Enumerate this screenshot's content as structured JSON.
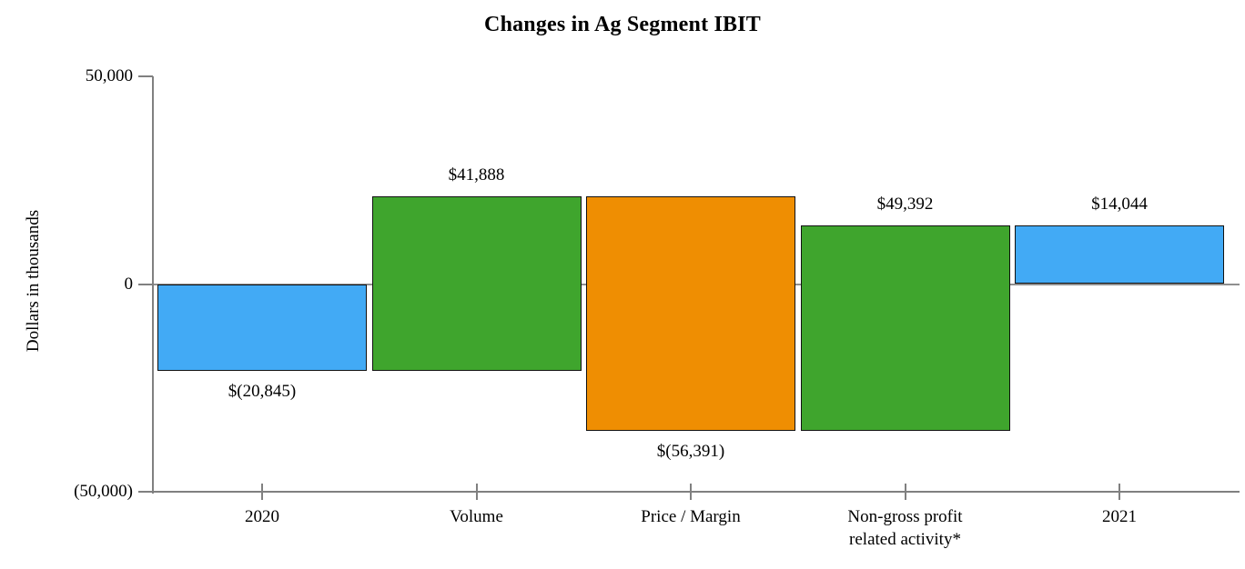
{
  "chart_data": {
    "type": "waterfall",
    "title": "Changes in Ag Segment IBIT",
    "ylabel": "Dollars in thousands",
    "xlabel": "",
    "ylim": [
      -50000,
      50000
    ],
    "grid": "zero-line-only",
    "legend": "none",
    "yticks": [
      {
        "value": 50000,
        "label": "50,000"
      },
      {
        "value": 0,
        "label": "0"
      },
      {
        "value": -50000,
        "label": "(50,000)"
      }
    ],
    "categories": [
      "2020",
      "Volume",
      "Price / Margin",
      "Non-gross profit\nrelated activity*",
      "2021"
    ],
    "values": [
      -20845,
      41888,
      -56391,
      49392,
      14044
    ],
    "bars": [
      {
        "category": "2020",
        "start": 0,
        "end": -20845,
        "value": -20845,
        "label": "$(20,845)",
        "label_position": "below",
        "color": "#42AAF5"
      },
      {
        "category": "Volume",
        "start": -20845,
        "end": 21043,
        "value": 41888,
        "label": "$41,888",
        "label_position": "above",
        "color": "#3FA52D"
      },
      {
        "category": "Price / Margin",
        "start": 21043,
        "end": -35348,
        "value": -56391,
        "label": "$(56,391)",
        "label_position": "below",
        "color": "#EF8E02"
      },
      {
        "category": "Non-gross profit\nrelated activity*",
        "start": -35348,
        "end": 14044,
        "value": 49392,
        "label": "$49,392",
        "label_position": "above",
        "color": "#3FA52D"
      },
      {
        "category": "2021",
        "start": 0,
        "end": 14044,
        "value": 14044,
        "label": "$14,044",
        "label_position": "above",
        "color": "#42AAF5"
      }
    ],
    "colors": {
      "total_bar": "#42AAF5",
      "increase_bar": "#3FA52D",
      "decrease_bar": "#EF8E02",
      "bar_border": "#111111",
      "axis": "#808080",
      "zero_line": "#8f8f8f",
      "text": "#000000"
    }
  }
}
